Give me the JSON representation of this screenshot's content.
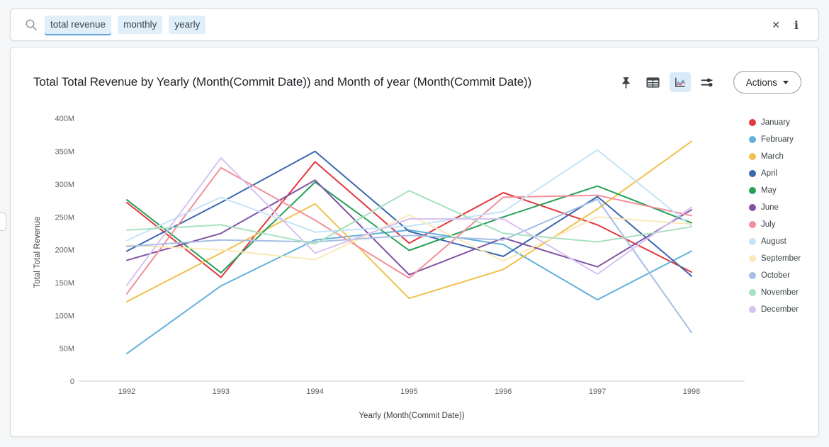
{
  "search_bar": {
    "tokens": [
      {
        "label": "total revenue",
        "active": true
      },
      {
        "label": "monthly",
        "active": false
      },
      {
        "label": "yearly",
        "active": false
      }
    ],
    "clear_icon": "✕",
    "info_icon": "i"
  },
  "card": {
    "title": "Total Total Revenue by Yearly (Month(Commit Date)) and Month of year (Month(Commit Date))",
    "toolbar": {
      "actions_label": "Actions",
      "selected_view": "line-chart"
    }
  },
  "chart_data": {
    "type": "line",
    "title": "Total Total Revenue by Yearly (Month(Commit Date)) and Month of year (Month(Commit Date))",
    "xlabel": "Yearly (Month(Commit Date))",
    "ylabel": "Total Total Revenue",
    "x": [
      1992,
      1993,
      1994,
      1995,
      1996,
      1997,
      1998
    ],
    "y_tick_labels": [
      "0",
      "50M",
      "100M",
      "150M",
      "200M",
      "250M",
      "300M",
      "350M",
      "400M"
    ],
    "y_tick_values": [
      0,
      50,
      100,
      150,
      200,
      250,
      300,
      350,
      400
    ],
    "unit": "millions",
    "ylim": [
      0,
      400
    ],
    "grid": false,
    "legend_position": "right",
    "series": [
      {
        "name": "January",
        "color": "#e2383f",
        "values": [
          272,
          158,
          334,
          210,
          287,
          238,
          166
        ]
      },
      {
        "name": "February",
        "color": "#62b1dc",
        "values": [
          42,
          145,
          215,
          230,
          208,
          124,
          198
        ]
      },
      {
        "name": "March",
        "color": "#f1c14f",
        "values": [
          121,
          195,
          270,
          126,
          170,
          262,
          365
        ]
      },
      {
        "name": "April",
        "color": "#3b67ae",
        "values": [
          198,
          272,
          350,
          228,
          190,
          281,
          160
        ]
      },
      {
        "name": "May",
        "color": "#28a05a",
        "values": [
          276,
          165,
          303,
          199,
          250,
          297,
          241
        ]
      },
      {
        "name": "June",
        "color": "#8053a5",
        "values": [
          184,
          225,
          306,
          162,
          218,
          174,
          261
        ]
      },
      {
        "name": "July",
        "color": "#f28f9b",
        "values": [
          133,
          325,
          245,
          157,
          280,
          283,
          252
        ]
      },
      {
        "name": "August",
        "color": "#c4e4f8",
        "values": [
          214,
          280,
          227,
          236,
          258,
          352,
          236
        ]
      },
      {
        "name": "September",
        "color": "#fae9b8",
        "values": [
          207,
          200,
          185,
          253,
          183,
          250,
          239
        ]
      },
      {
        "name": "October",
        "color": "#a5bee4",
        "values": [
          205,
          215,
          212,
          222,
          215,
          277,
          74
        ]
      },
      {
        "name": "November",
        "color": "#a7e1bf",
        "values": [
          230,
          238,
          209,
          290,
          225,
          212,
          235
        ]
      },
      {
        "name": "December",
        "color": "#d8c2f0",
        "values": [
          146,
          340,
          195,
          247,
          247,
          163,
          265
        ]
      }
    ]
  }
}
